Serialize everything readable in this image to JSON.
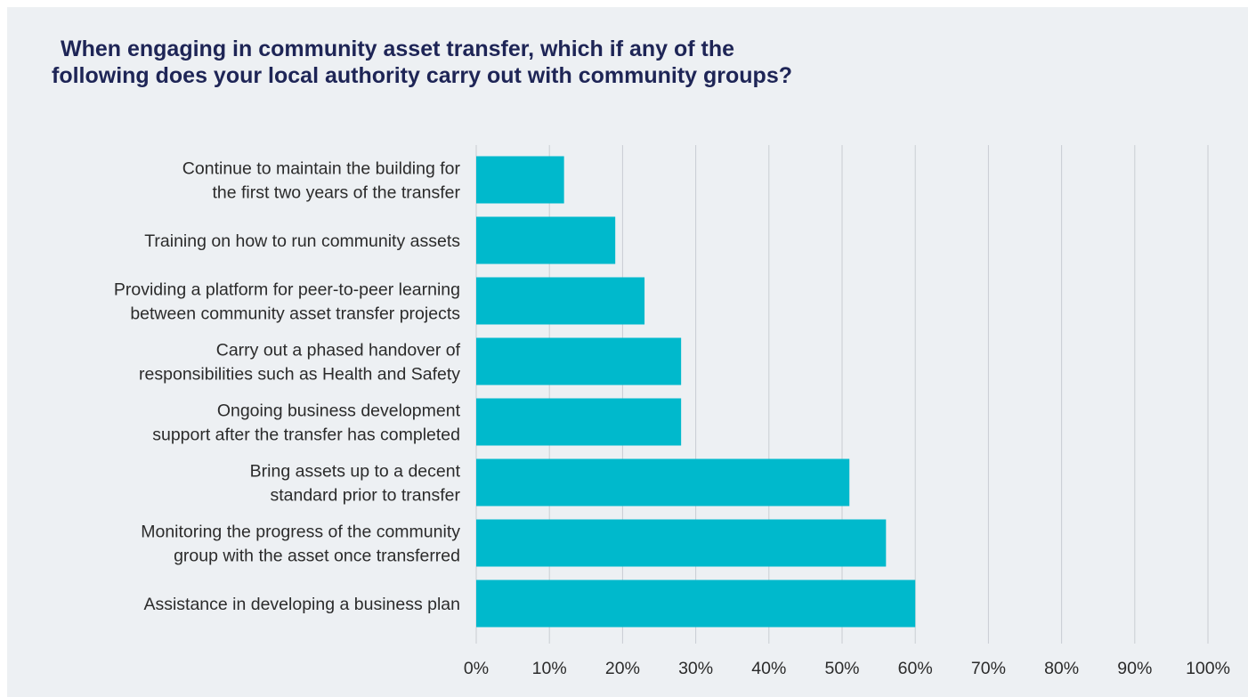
{
  "chart_data": {
    "type": "bar",
    "orientation": "horizontal",
    "title": "When engaging in community asset transfer, which if any of the following does your local authority carry out with community groups?",
    "title_lines": [
      "When engaging in community asset transfer, which if any of the",
      "following does your local authority carry out with community groups?"
    ],
    "categories": [
      [
        "Continue to maintain the building for",
        "the first two years of the transfer"
      ],
      [
        "Training on how to run community assets"
      ],
      [
        "Providing a platform for peer-to-peer learning",
        "between community asset transfer projects"
      ],
      [
        "Carry out a phased handover of",
        "responsibilities such as Health and Safety"
      ],
      [
        "Ongoing business development",
        "support after the transfer has completed"
      ],
      [
        "Bring assets up to a decent",
        "standard prior to transfer"
      ],
      [
        "Monitoring the progress of the community",
        "group with the asset once transferred"
      ],
      [
        "Assistance in developing a business plan"
      ]
    ],
    "values": [
      12,
      19,
      23,
      28,
      28,
      51,
      56,
      60
    ],
    "xlim": [
      0,
      100
    ],
    "xticks": [
      "0%",
      "10%",
      "20%",
      "30%",
      "40%",
      "50%",
      "60%",
      "70%",
      "80%",
      "90%",
      "100%"
    ],
    "grid": "vertical",
    "legend": "none",
    "colors": {
      "bar": "#00b9cc",
      "grid": "#c9cdd2",
      "title": "#1e2556",
      "background": "#edf0f3"
    }
  }
}
